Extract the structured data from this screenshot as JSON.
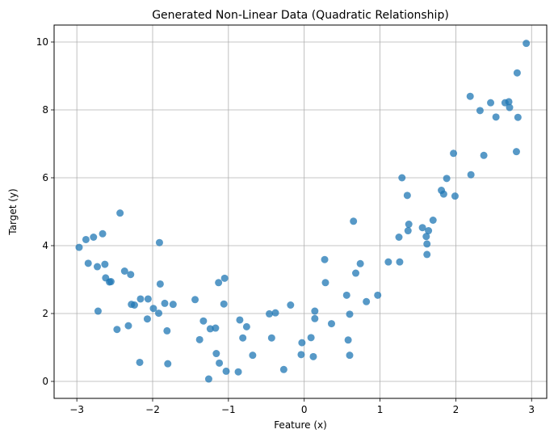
{
  "chart_data": {
    "type": "scatter",
    "title": "Generated Non-Linear Data (Quadratic Relationship)",
    "xlabel": "Feature (x)",
    "ylabel": "Target (y)",
    "xlim": [
      -3.3,
      3.2
    ],
    "ylim": [
      -0.5,
      10.5
    ],
    "xticks": [
      -3,
      -2,
      -1,
      0,
      1,
      2,
      3
    ],
    "yticks": [
      0,
      2,
      4,
      6,
      8,
      10
    ],
    "grid": true,
    "marker_color": "#1f77b4",
    "marker_alpha": 0.75,
    "x": [
      -2.97,
      -2.88,
      -2.85,
      -2.78,
      -2.72,
      -2.73,
      -2.66,
      -2.63,
      -2.62,
      -2.57,
      -2.55,
      -2.47,
      -2.43,
      -2.37,
      -2.32,
      -2.29,
      -2.28,
      -2.24,
      -2.17,
      -2.16,
      -2.07,
      -2.06,
      -1.99,
      -1.92,
      -1.91,
      -1.9,
      -1.84,
      -1.81,
      -1.8,
      -1.73,
      -1.44,
      -1.38,
      -1.33,
      -1.26,
      -1.24,
      -1.17,
      -1.16,
      -1.13,
      -1.12,
      -1.06,
      -1.05,
      -1.03,
      -0.87,
      -0.85,
      -0.81,
      -0.76,
      -0.68,
      -0.46,
      -0.43,
      -0.38,
      -0.27,
      -0.18,
      -0.04,
      -0.03,
      0.09,
      0.12,
      0.14,
      0.14,
      0.27,
      0.28,
      0.36,
      0.56,
      0.58,
      0.6,
      0.6,
      0.65,
      0.68,
      0.74,
      0.82,
      0.97,
      1.11,
      1.25,
      1.26,
      1.29,
      1.36,
      1.37,
      1.38,
      1.56,
      1.61,
      1.62,
      1.62,
      1.64,
      1.7,
      1.81,
      1.84,
      1.88,
      1.97,
      1.99,
      2.19,
      2.2,
      2.32,
      2.37,
      2.46,
      2.53,
      2.65,
      2.7,
      2.71,
      2.8,
      2.81,
      2.82,
      2.93
    ],
    "y": [
      3.95,
      4.18,
      3.48,
      4.25,
      2.07,
      3.38,
      4.35,
      3.45,
      3.05,
      2.93,
      2.94,
      1.53,
      4.96,
      3.25,
      1.64,
      3.15,
      2.27,
      2.25,
      0.56,
      2.43,
      1.84,
      2.43,
      2.15,
      2.01,
      4.09,
      2.87,
      2.3,
      1.49,
      0.52,
      2.27,
      2.41,
      1.23,
      1.78,
      0.07,
      1.55,
      1.57,
      0.82,
      2.91,
      0.54,
      2.28,
      3.04,
      0.3,
      0.28,
      1.81,
      1.28,
      1.61,
      0.77,
      1.99,
      1.28,
      2.02,
      0.35,
      2.25,
      0.79,
      1.14,
      1.29,
      0.73,
      2.07,
      1.85,
      3.59,
      2.91,
      1.7,
      2.54,
      1.22,
      0.77,
      1.98,
      4.72,
      3.19,
      3.47,
      2.35,
      2.54,
      3.52,
      4.25,
      3.52,
      6.0,
      5.48,
      4.44,
      4.63,
      4.53,
      4.27,
      4.05,
      3.74,
      4.44,
      4.75,
      5.63,
      5.52,
      5.98,
      6.72,
      5.46,
      8.4,
      6.09,
      7.98,
      6.66,
      8.21,
      7.79,
      8.21,
      8.24,
      8.07,
      6.77,
      9.09,
      7.78,
      9.96
    ]
  }
}
